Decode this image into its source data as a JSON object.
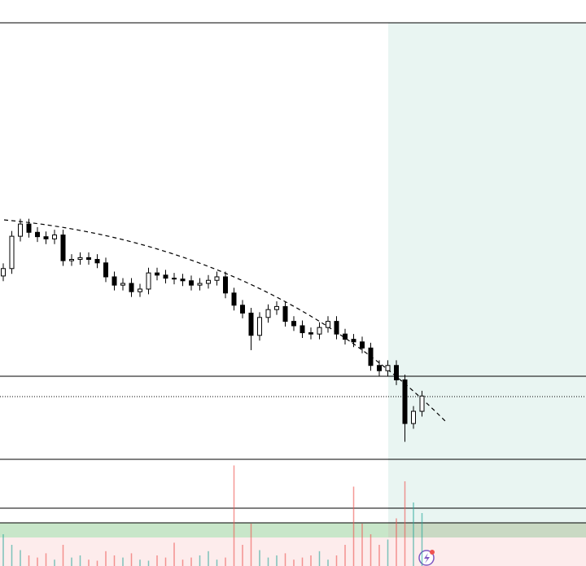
{
  "chart_data": {
    "type": "candlestick",
    "open": [
      42.0,
      43.7,
      51.1,
      53.9,
      52.0,
      51.0,
      50.5,
      51.4,
      45.5,
      45.8,
      46.2,
      45.8,
      45.0,
      41.8,
      39.9,
      40.3,
      38.4,
      39.0,
      42.7,
      42.2,
      41.5,
      41.3,
      40.9,
      39.9,
      40.3,
      41.0,
      41.8,
      38.1,
      35.3,
      33.5,
      28.4,
      32.5,
      34.3,
      35.0,
      31.6,
      30.6,
      29.0,
      28.7,
      30.2,
      31.6,
      28.7,
      27.5,
      26.9,
      25.5,
      21.5,
      20.3,
      21.5,
      18.2,
      8.2,
      11.0
    ],
    "high": [
      44.9,
      52.3,
      55.1,
      55.1,
      53.2,
      52.2,
      52.6,
      52.6,
      47.0,
      47.4,
      47.4,
      47.0,
      46.2,
      43.0,
      41.5,
      41.5,
      40.2,
      43.9,
      43.9,
      43.4,
      42.7,
      42.5,
      42.1,
      41.5,
      42.2,
      43.0,
      43.0,
      39.3,
      36.5,
      34.7,
      33.7,
      35.5,
      36.2,
      36.2,
      32.8,
      31.8,
      30.2,
      31.4,
      32.8,
      32.8,
      29.9,
      28.7,
      28.1,
      26.7,
      22.7,
      22.7,
      22.7,
      19.4,
      12.2,
      15.7
    ],
    "low": [
      40.8,
      42.5,
      49.9,
      50.8,
      49.8,
      49.3,
      49.3,
      44.3,
      44.3,
      44.6,
      44.6,
      43.8,
      40.6,
      38.7,
      38.7,
      37.2,
      37.2,
      37.8,
      41.0,
      40.3,
      40.1,
      39.7,
      38.7,
      38.7,
      39.1,
      39.8,
      36.9,
      34.1,
      32.3,
      25.0,
      27.2,
      31.3,
      33.1,
      30.4,
      29.4,
      27.8,
      27.5,
      27.5,
      29.0,
      27.5,
      26.3,
      25.7,
      24.3,
      20.3,
      19.1,
      19.1,
      17.0,
      4.0,
      7.0,
      9.8
    ],
    "close": [
      43.7,
      51.1,
      53.9,
      52.0,
      51.0,
      50.5,
      51.4,
      45.5,
      45.8,
      46.2,
      45.8,
      45.0,
      41.8,
      39.9,
      40.3,
      38.4,
      39.0,
      42.7,
      42.2,
      41.5,
      41.3,
      40.9,
      39.9,
      40.3,
      41.0,
      41.8,
      38.1,
      35.3,
      33.5,
      28.4,
      32.5,
      34.3,
      35.0,
      31.6,
      30.6,
      29.0,
      28.7,
      30.2,
      31.6,
      28.7,
      27.5,
      26.9,
      25.5,
      21.5,
      20.3,
      21.5,
      18.2,
      8.2,
      11.0,
      14.5
    ],
    "ylim": [
      0,
      100
    ],
    "volume": [
      30,
      20,
      15,
      10,
      8,
      12,
      6,
      20,
      8,
      10,
      6,
      5,
      14,
      10,
      8,
      12,
      6,
      5,
      10,
      8,
      22,
      6,
      8,
      10,
      14,
      6,
      8,
      95,
      20,
      40,
      15,
      8,
      10,
      12,
      6,
      8,
      10,
      14,
      6,
      10,
      20,
      75,
      40,
      30,
      20,
      25,
      45,
      80,
      60,
      50
    ],
    "volume_ylim": [
      0,
      100
    ],
    "up_color": "#26a69a",
    "down_color": "#ef5350"
  }
}
